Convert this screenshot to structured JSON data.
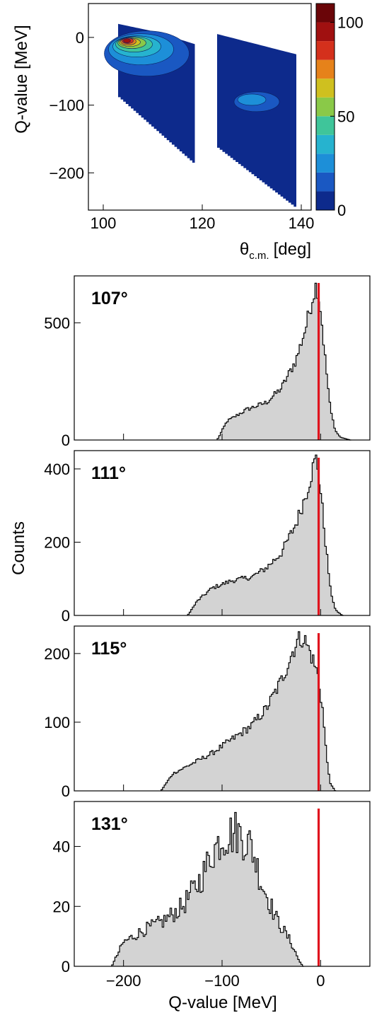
{
  "colors": {
    "hist_fill": "#d3d3d3",
    "hist_line": "#000000",
    "marker": "#e0141e",
    "palette": [
      "#0d2a8c",
      "#1a58c2",
      "#1d8fd8",
      "#26b3cf",
      "#3fc59a",
      "#8ac948",
      "#cfc01f",
      "#e6821a",
      "#d4301c",
      "#a01010",
      "#6a0508"
    ]
  },
  "chart_data": [
    {
      "type": "heatmap",
      "xlabel_main": "θ",
      "xlabel_sub": "c.m.",
      "xlabel_unit": "[deg]",
      "ylabel": "Q-value [MeV]",
      "xlim": [
        97,
        142
      ],
      "ylim": [
        -255,
        50
      ],
      "x_ticks": [
        100,
        120,
        140
      ],
      "y_ticks": [
        0,
        -100,
        -200
      ],
      "colorbar": {
        "range": [
          0,
          110
        ],
        "ticks": [
          0,
          50,
          100
        ],
        "levels": 11
      },
      "regions": [
        {
          "theta_range": [
            103,
            118.5
          ],
          "q_top": [
            20,
            8,
            -10
          ],
          "q_bottom": [
            -85,
            -185
          ]
        },
        {
          "theta_range": [
            123,
            139
          ],
          "q_top": [
            5,
            -10,
            -25
          ],
          "q_bottom": [
            -160,
            -250
          ]
        }
      ],
      "hotspot": {
        "theta": 104.5,
        "q": -5,
        "max": 110
      }
    },
    {
      "type": "histogram",
      "label": "107°",
      "ylabel": "Counts",
      "xlim": [
        -250,
        50
      ],
      "ylim": [
        0,
        700
      ],
      "y_ticks": [
        0,
        500
      ],
      "marker_x": -2,
      "bins": [
        -200,
        5,
        40
      ],
      "envelope": [
        [
          -105,
          0
        ],
        [
          -95,
          80
        ],
        [
          -75,
          130
        ],
        [
          -55,
          160
        ],
        [
          -40,
          220
        ],
        [
          -25,
          340
        ],
        [
          -15,
          480
        ],
        [
          -7,
          630
        ],
        [
          -4,
          665
        ],
        [
          0,
          560
        ],
        [
          5,
          330
        ],
        [
          10,
          130
        ],
        [
          15,
          40
        ],
        [
          20,
          12
        ],
        [
          30,
          0
        ]
      ]
    },
    {
      "type": "histogram",
      "label": "111°",
      "ylabel": "",
      "xlim": [
        -250,
        50
      ],
      "ylim": [
        0,
        450
      ],
      "y_ticks": [
        0,
        200,
        400
      ],
      "marker_x": -2,
      "bins": [
        -200,
        5,
        40
      ],
      "envelope": [
        [
          -135,
          0
        ],
        [
          -125,
          40
        ],
        [
          -110,
          75
        ],
        [
          -90,
          95
        ],
        [
          -70,
          105
        ],
        [
          -55,
          130
        ],
        [
          -40,
          170
        ],
        [
          -25,
          250
        ],
        [
          -15,
          330
        ],
        [
          -7,
          410
        ],
        [
          -4,
          430
        ],
        [
          0,
          340
        ],
        [
          5,
          200
        ],
        [
          10,
          70
        ],
        [
          15,
          15
        ],
        [
          22,
          0
        ]
      ]
    },
    {
      "type": "histogram",
      "label": "115°",
      "ylabel": "",
      "xlim": [
        -250,
        50
      ],
      "ylim": [
        0,
        240
      ],
      "y_ticks": [
        0,
        100,
        200
      ],
      "marker_x": -2,
      "bins": [
        -200,
        5,
        40
      ],
      "envelope": [
        [
          -162,
          0
        ],
        [
          -150,
          25
        ],
        [
          -130,
          40
        ],
        [
          -110,
          55
        ],
        [
          -90,
          75
        ],
        [
          -70,
          95
        ],
        [
          -55,
          120
        ],
        [
          -40,
          160
        ],
        [
          -25,
          215
        ],
        [
          -18,
          225
        ],
        [
          -10,
          200
        ],
        [
          -3,
          170
        ],
        [
          2,
          120
        ],
        [
          6,
          50
        ],
        [
          10,
          10
        ],
        [
          15,
          0
        ]
      ]
    },
    {
      "type": "histogram",
      "label": "131°",
      "ylabel": "",
      "xlabel": "Q-value [MeV]",
      "xlim": [
        -250,
        50
      ],
      "ylim": [
        0,
        55
      ],
      "y_ticks": [
        0,
        20,
        40
      ],
      "x_ticks": [
        -200,
        -100,
        0
      ],
      "marker_x": -2,
      "bins": [
        -215,
        5,
        40
      ],
      "envelope": [
        [
          -212,
          0
        ],
        [
          -200,
          8
        ],
        [
          -180,
          12
        ],
        [
          -160,
          15
        ],
        [
          -140,
          20
        ],
        [
          -120,
          30
        ],
        [
          -110,
          38
        ],
        [
          -100,
          43
        ],
        [
          -85,
          45
        ],
        [
          -70,
          40
        ],
        [
          -60,
          28
        ],
        [
          -45,
          16
        ],
        [
          -30,
          8
        ],
        [
          -22,
          2
        ],
        [
          -18,
          0
        ]
      ]
    }
  ]
}
